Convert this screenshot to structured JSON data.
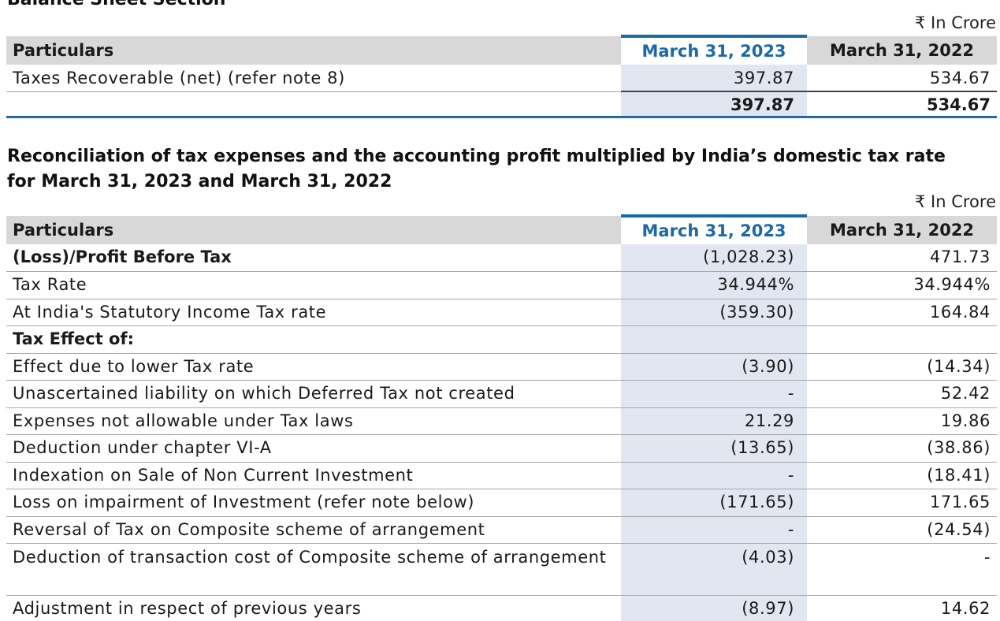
{
  "balance_sheet": {
    "title": "Balance Sheet Section",
    "unit": "₹ In Crore",
    "headers": {
      "particulars": "Particulars",
      "current": "March 31, 2023",
      "previous": "March 31, 2022"
    },
    "rows": [
      {
        "label": "Taxes Recoverable (net) (refer note 8)",
        "current": "397.87",
        "previous": "534.67"
      }
    ],
    "total": {
      "label": "",
      "current": "397.87",
      "previous": "534.67"
    }
  },
  "reconciliation": {
    "title_line1": "Reconciliation of tax expenses and the accounting profit multiplied by India’s domestic tax rate",
    "title_line2": "for March 31, 2023 and March 31, 2022",
    "unit": "₹ In Crore",
    "headers": {
      "particulars": "Particulars",
      "current": "March 31, 2023",
      "previous": "March 31, 2022"
    },
    "rows": [
      {
        "label": "(Loss)/Profit Before Tax",
        "current": "(1,028.23)",
        "previous": "471.73",
        "bold": true
      },
      {
        "label": "Tax Rate",
        "current": "34.944%",
        "previous": "34.944%"
      },
      {
        "label": "At India's Statutory Income Tax rate",
        "current": "(359.30)",
        "previous": "164.84"
      },
      {
        "label": "Tax Effect of:",
        "current": "",
        "previous": "",
        "bold": true
      },
      {
        "label": "Effect due to lower Tax rate",
        "current": "(3.90)",
        "previous": "(14.34)"
      },
      {
        "label": "Unascertained liability on which Deferred Tax not created",
        "current": "-",
        "previous": "52.42"
      },
      {
        "label": "Expenses not allowable under Tax laws",
        "current": "21.29",
        "previous": "19.86"
      },
      {
        "label": "Deduction under chapter VI-A",
        "current": "(13.65)",
        "previous": "(38.86)"
      },
      {
        "label": "Indexation on Sale of Non Current Investment",
        "current": "-",
        "previous": "(18.41)"
      },
      {
        "label": "Loss on impairment of Investment (refer note below)",
        "current": "(171.65)",
        "previous": "171.65"
      },
      {
        "label": "Reversal of Tax on Composite scheme of arrangement",
        "current": "-",
        "previous": "(24.54)"
      },
      {
        "label": "Deduction of transaction cost of Composite scheme of arrangement",
        "current": "(4.03)",
        "previous": "-",
        "two_line": true
      },
      {
        "label": "Adjustment in respect of previous years",
        "current": "(8.97)",
        "previous": "14.62"
      }
    ]
  }
}
